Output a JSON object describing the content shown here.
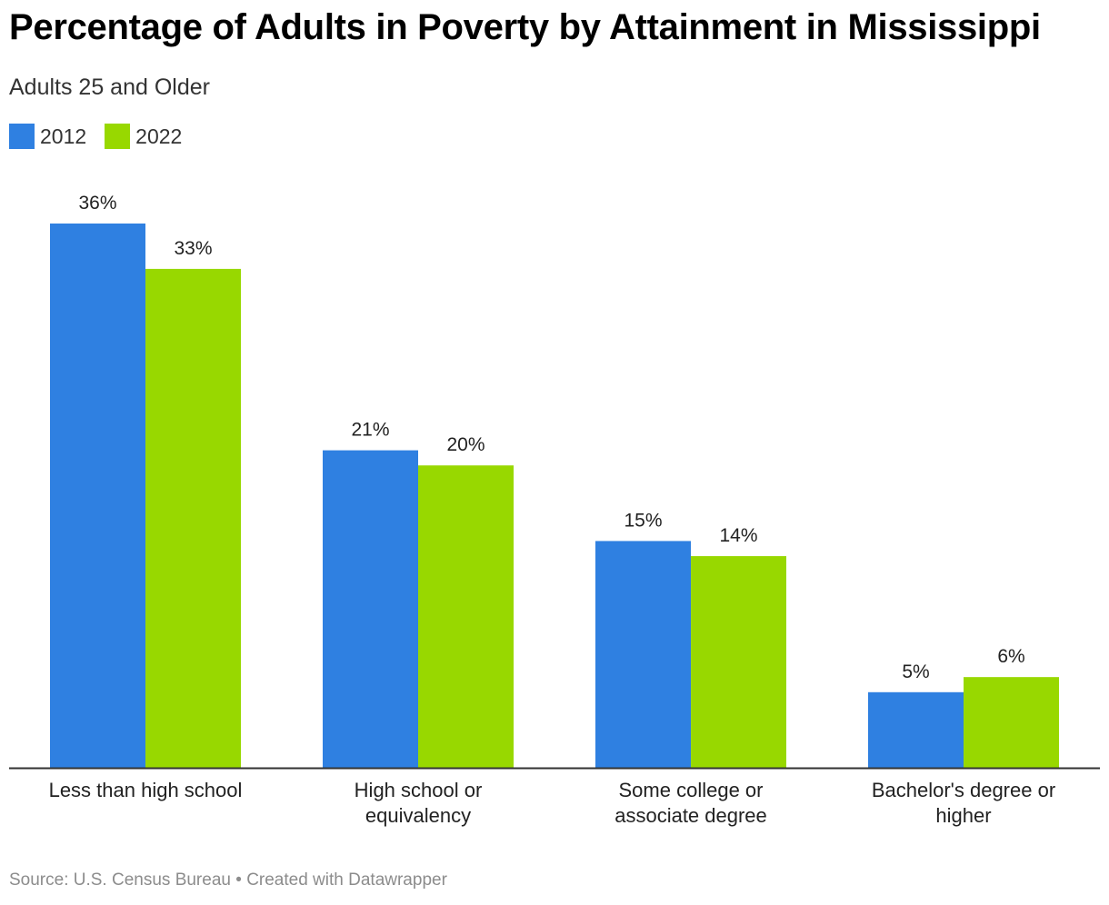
{
  "title": "Percentage of Adults in Poverty by Attainment in Mississippi",
  "subtitle": "Adults 25 and Older",
  "footer": {
    "source": "Source: U.S. Census Bureau",
    "separator": "•",
    "credit": "Created with Datawrapper"
  },
  "colors": {
    "series_2012": "#2f80e1",
    "series_2022": "#98d800",
    "axis": "#333333"
  },
  "chart_data": {
    "type": "bar",
    "title": "Percentage of Adults in Poverty by Attainment in Mississippi",
    "subtitle": "Adults 25 and Older",
    "categories": [
      [
        "Less than high school"
      ],
      [
        "High school or",
        "equivalency"
      ],
      [
        "Some college or",
        "associate degree"
      ],
      [
        "Bachelor's degree or",
        "higher"
      ]
    ],
    "series": [
      {
        "name": "2012",
        "values": [
          36,
          21,
          15,
          5
        ],
        "labels": [
          "36%",
          "21%",
          "15%",
          "5%"
        ]
      },
      {
        "name": "2022",
        "values": [
          33,
          20,
          14,
          6
        ],
        "labels": [
          "33%",
          "20%",
          "14%",
          "6%"
        ]
      }
    ],
    "value_suffix": "%",
    "ylim": [
      0,
      36
    ],
    "grid": false,
    "legend": "top-left"
  }
}
